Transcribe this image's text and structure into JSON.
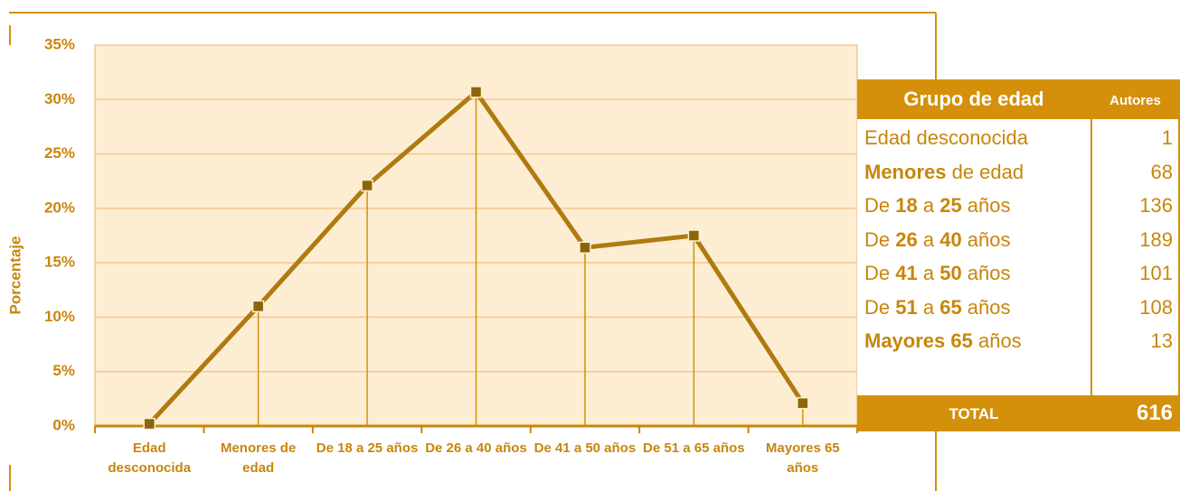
{
  "chart_data": {
    "type": "line",
    "y_label": "Porcentaje",
    "categories": [
      "Edad desconocida",
      "Menores de edad",
      "De 18 a 25 años",
      "De 26 a 40 años",
      "De 41 a 50 años",
      "De 51 a 65 años",
      "Mayores 65 años"
    ],
    "values": [
      0.2,
      11.0,
      22.1,
      30.7,
      16.4,
      17.5,
      2.1
    ],
    "color": "#b07a10",
    "marker_color": "#8b6508",
    "ylim": [
      0,
      35
    ],
    "yticks": [
      {
        "value": 0,
        "label": "0%"
      },
      {
        "value": 5,
        "label": "5%"
      },
      {
        "value": 10,
        "label": "10%"
      },
      {
        "value": 15,
        "label": "15%"
      },
      {
        "value": 20,
        "label": "20%"
      },
      {
        "value": 25,
        "label": "25%"
      },
      {
        "value": 30,
        "label": "30%"
      },
      {
        "value": 35,
        "label": "35%"
      }
    ],
    "grid": true,
    "drop_lines": true
  },
  "table": {
    "header": [
      "Grupo de edad",
      "Autores"
    ],
    "rows": [
      {
        "label": [
          "Edad desconocida"
        ],
        "bold": [],
        "value": 1
      },
      {
        "label": [
          "Menores",
          " de edad"
        ],
        "bold": [
          0
        ],
        "value": 68
      },
      {
        "label": [
          "De ",
          "18",
          " a ",
          "25",
          " años"
        ],
        "bold": [
          1,
          3
        ],
        "value": 136
      },
      {
        "label": [
          "De ",
          "26",
          " a ",
          "40",
          " años"
        ],
        "bold": [
          1,
          3
        ],
        "value": 189
      },
      {
        "label": [
          "De ",
          "41",
          " a ",
          "50",
          " años"
        ],
        "bold": [
          1,
          3
        ],
        "value": 101
      },
      {
        "label": [
          "De ",
          "51",
          " a ",
          "65",
          " años"
        ],
        "bold": [
          1,
          3
        ],
        "value": 108
      },
      {
        "label": [
          "Mayores 65",
          " años"
        ],
        "bold": [
          0
        ],
        "value": 13
      }
    ],
    "total": {
      "label": "TOTAL",
      "value": 616
    }
  }
}
